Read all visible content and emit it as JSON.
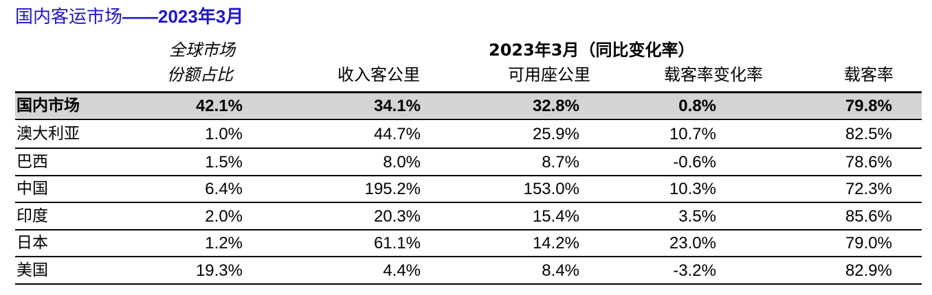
{
  "title": {
    "prefix": "国内客运市场",
    "suffix": "——2023年3月"
  },
  "headers": {
    "share_line1": "全球市场",
    "share_line2": "份额占比",
    "group": "2023年3月（同比变化率）",
    "rpk": "收入客公里",
    "ask": "可用座公里",
    "plf_change": "载客率变化率",
    "plf": "载客率"
  },
  "rows": [
    {
      "name": "国内市场",
      "share": "42.1%",
      "rpk": "34.1%",
      "ask": "32.8%",
      "plf_change": "0.8%",
      "plf": "79.8%"
    },
    {
      "name": "澳大利亚",
      "share": "1.0%",
      "rpk": "44.7%",
      "ask": "25.9%",
      "plf_change": "10.7%",
      "plf": "82.5%"
    },
    {
      "name": "巴西",
      "share": "1.5%",
      "rpk": "8.0%",
      "ask": "8.7%",
      "plf_change": "-0.6%",
      "plf": "78.6%"
    },
    {
      "name": "中国",
      "share": "6.4%",
      "rpk": "195.2%",
      "ask": "153.0%",
      "plf_change": "10.3%",
      "plf": "72.3%"
    },
    {
      "name": "印度",
      "share": "2.0%",
      "rpk": "20.3%",
      "ask": "15.4%",
      "plf_change": "3.5%",
      "plf": "85.6%"
    },
    {
      "name": "日本",
      "share": "1.2%",
      "rpk": "61.1%",
      "ask": "14.2%",
      "plf_change": "23.0%",
      "plf": "79.0%"
    },
    {
      "name": "美国",
      "share": "19.3%",
      "rpk": "4.4%",
      "ask": "8.4%",
      "plf_change": "-3.2%",
      "plf": "82.9%"
    }
  ],
  "colors": {
    "title": "#1f17c8",
    "highlight_row": "#d4d4d4",
    "rule": "#000000"
  }
}
